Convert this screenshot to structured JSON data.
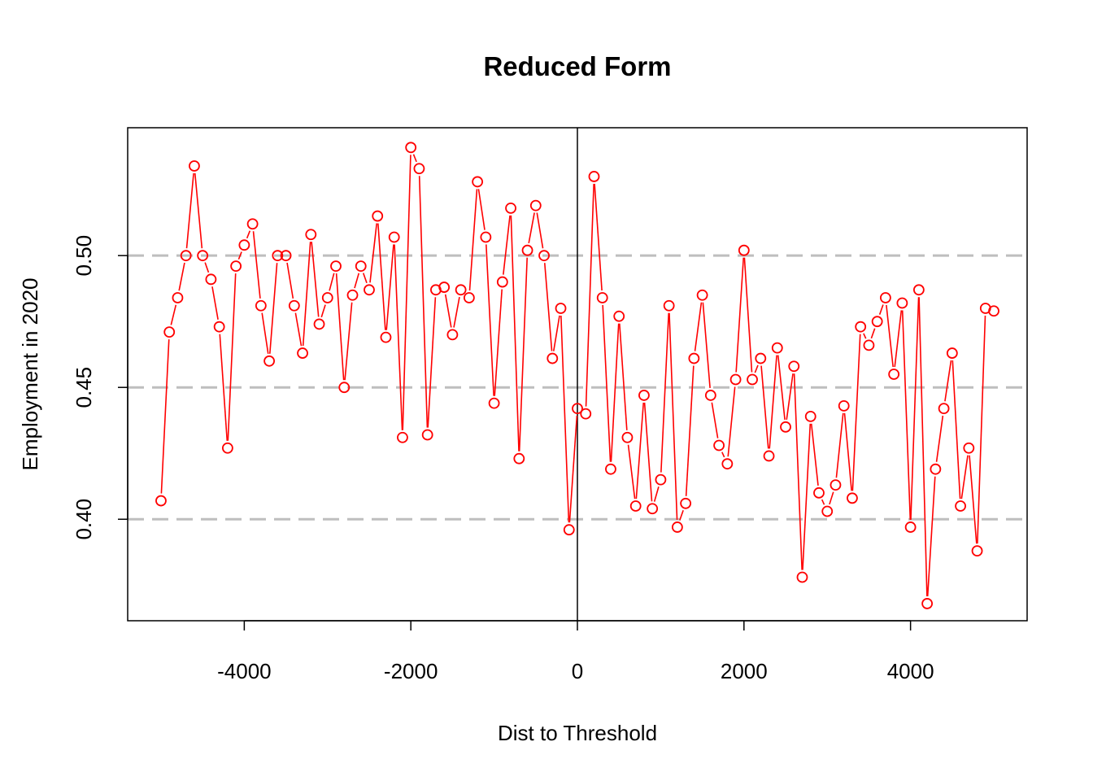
{
  "chart_data": {
    "type": "line",
    "title": "Reduced Form",
    "xlabel": "Dist to Threshold",
    "ylabel": "Employment in 2020",
    "xlim": [
      -5400,
      5400
    ],
    "ylim": [
      0.3615,
      0.5485
    ],
    "x_ticks": [
      -4000,
      -2000,
      0,
      2000,
      4000
    ],
    "x_tick_labels": [
      "-4000",
      "-2000",
      "0",
      "2000",
      "4000"
    ],
    "y_ticks": [
      0.4,
      0.45,
      0.5
    ],
    "y_tick_labels": [
      "0.40",
      "0.45",
      "0.50"
    ],
    "reference_hlines": [
      0.4,
      0.45,
      0.5
    ],
    "reference_vline": 0,
    "grid": false,
    "colors": {
      "series": "#ff0000",
      "reference_hline": "#bebebe",
      "reference_vline": "#000000"
    },
    "series": [
      {
        "x": [
          -5000,
          -4900,
          -4800,
          -4700,
          -4600,
          -4500,
          -4400,
          -4300,
          -4200,
          -4100,
          -4000,
          -3900,
          -3800,
          -3700,
          -3600,
          -3500,
          -3400,
          -3300,
          -3200,
          -3100,
          -3000,
          -2900,
          -2800,
          -2700,
          -2600,
          -2500,
          -2400,
          -2300,
          -2200,
          -2100,
          -2000,
          -1900,
          -1800,
          -1700,
          -1600,
          -1500,
          -1400,
          -1300,
          -1200,
          -1100,
          -1000,
          -900,
          -800,
          -700,
          -600,
          -500,
          -400,
          -300,
          -200,
          -100,
          0,
          100,
          200,
          300,
          400,
          500,
          600,
          700,
          800,
          900,
          1000,
          1100,
          1200,
          1300,
          1400,
          1500,
          1600,
          1700,
          1800,
          1900,
          2000,
          2100,
          2200,
          2300,
          2400,
          2500,
          2600,
          2700,
          2800,
          2900,
          3000,
          3100,
          3200,
          3300,
          3400,
          3500,
          3600,
          3700,
          3800,
          3900,
          4000,
          4100,
          4200,
          4300,
          4400,
          4500,
          4600,
          4700,
          4800,
          4900,
          5000
        ],
        "y": [
          0.407,
          0.471,
          0.484,
          0.5,
          0.534,
          0.5,
          0.491,
          0.473,
          0.427,
          0.496,
          0.504,
          0.512,
          0.481,
          0.46,
          0.5,
          0.5,
          0.481,
          0.463,
          0.508,
          0.474,
          0.484,
          0.496,
          0.45,
          0.485,
          0.496,
          0.487,
          0.515,
          0.469,
          0.507,
          0.431,
          0.541,
          0.533,
          0.432,
          0.487,
          0.488,
          0.47,
          0.487,
          0.484,
          0.528,
          0.507,
          0.444,
          0.49,
          0.518,
          0.423,
          0.502,
          0.519,
          0.5,
          0.461,
          0.48,
          0.396,
          0.442,
          0.44,
          0.53,
          0.484,
          0.419,
          0.477,
          0.431,
          0.405,
          0.447,
          0.404,
          0.415,
          0.481,
          0.397,
          0.406,
          0.461,
          0.485,
          0.447,
          0.428,
          0.421,
          0.453,
          0.502,
          0.453,
          0.461,
          0.424,
          0.465,
          0.435,
          0.458,
          0.378,
          0.439,
          0.41,
          0.403,
          0.413,
          0.443,
          0.408,
          0.473,
          0.466,
          0.475,
          0.484,
          0.455,
          0.482,
          0.397,
          0.487,
          0.368,
          0.419,
          0.442,
          0.463,
          0.405,
          0.427,
          0.388,
          0.48,
          0.479
        ]
      }
    ]
  }
}
